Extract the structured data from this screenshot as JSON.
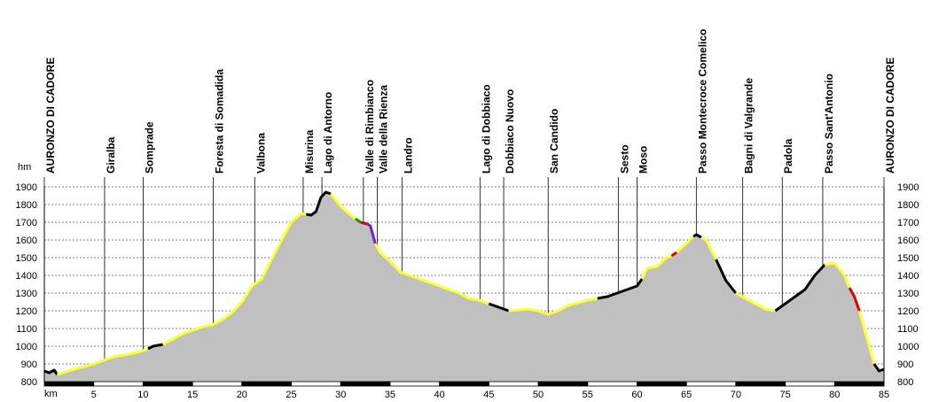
{
  "chart_data": {
    "type": "area",
    "y_label": "hm",
    "x_label": "km",
    "xlim": [
      0,
      85
    ],
    "ylim": [
      800,
      1900
    ],
    "xticks": [
      5,
      10,
      15,
      20,
      25,
      30,
      35,
      40,
      45,
      50,
      55,
      60,
      65,
      70,
      75,
      80,
      85
    ],
    "yticks": [
      800,
      900,
      1000,
      1100,
      1200,
      1300,
      1400,
      1500,
      1600,
      1700,
      1800,
      1900
    ],
    "grid": true,
    "fill_color": "#c0c0c0",
    "locations": [
      {
        "name": "AURONZO DI CADORE",
        "km": 0
      },
      {
        "name": "Giralba",
        "km": 6.1
      },
      {
        "name": "Somprade",
        "km": 10
      },
      {
        "name": "Foresta di Somadida",
        "km": 17.1
      },
      {
        "name": "Valbona",
        "km": 21.3
      },
      {
        "name": "Misurina",
        "km": 26.2
      },
      {
        "name": "Lago di Antorno",
        "km": 28.1
      },
      {
        "name": "Valle di Rimbianco",
        "km": 32.3
      },
      {
        "name": "Valle della Rienza",
        "km": 33.7
      },
      {
        "name": "Landro",
        "km": 36.2
      },
      {
        "name": "Lago di Dobbiaco",
        "km": 44.1
      },
      {
        "name": "Dobbiaco Nuovo",
        "km": 46.5
      },
      {
        "name": "San Candido",
        "km": 51
      },
      {
        "name": "Sesto",
        "km": 58.1
      },
      {
        "name": "Moso",
        "km": 60
      },
      {
        "name": "Passo Montecroce Comelico",
        "km": 66
      },
      {
        "name": "Bagni di Valgrande",
        "km": 70.7
      },
      {
        "name": "Padola",
        "km": 74.7
      },
      {
        "name": "Passo Sant'Antonio",
        "km": 78.8
      },
      {
        "name": "AURONZO DI CADORE",
        "km": 85
      }
    ],
    "series": [
      {
        "color": "#000000",
        "x": [
          0,
          0.5,
          1,
          1.3
        ],
        "values": [
          860,
          850,
          865,
          840
        ]
      },
      {
        "color": "#ffff33",
        "x": [
          1.3,
          3,
          5,
          6,
          7,
          9,
          10,
          10.5
        ],
        "values": [
          840,
          870,
          900,
          920,
          940,
          960,
          975,
          985
        ]
      },
      {
        "color": "#000000",
        "x": [
          10.5,
          11,
          12
        ],
        "values": [
          985,
          1000,
          1010
        ]
      },
      {
        "color": "#ffff33",
        "x": [
          12,
          13,
          14,
          15,
          16,
          17,
          18,
          19,
          20,
          21,
          22,
          23,
          24,
          25,
          26,
          26.5
        ],
        "values": [
          1010,
          1040,
          1070,
          1090,
          1110,
          1120,
          1150,
          1190,
          1250,
          1340,
          1380,
          1490,
          1600,
          1700,
          1750,
          1745
        ]
      },
      {
        "color": "#000000",
        "x": [
          26.5,
          27,
          27.5,
          28,
          28.5,
          29
        ],
        "values": [
          1745,
          1740,
          1760,
          1840,
          1870,
          1860
        ]
      },
      {
        "color": "#ffff33",
        "x": [
          29,
          30,
          31,
          31.5
        ],
        "values": [
          1860,
          1790,
          1740,
          1720
        ]
      },
      {
        "color": "#00a000",
        "x": [
          31.5,
          32
        ],
        "values": [
          1720,
          1700
        ]
      },
      {
        "color": "#e00000",
        "x": [
          32,
          32.7
        ],
        "values": [
          1700,
          1690
        ]
      },
      {
        "color": "#7020d0",
        "x": [
          32.7,
          33,
          33.5
        ],
        "values": [
          1690,
          1680,
          1580
        ]
      },
      {
        "color": "#ffff33",
        "x": [
          33.5,
          34,
          35,
          36,
          38,
          40,
          42,
          43,
          44,
          45
        ],
        "values": [
          1580,
          1530,
          1480,
          1420,
          1380,
          1340,
          1300,
          1270,
          1260,
          1240
        ]
      },
      {
        "color": "#000000",
        "x": [
          45,
          46,
          47
        ],
        "values": [
          1240,
          1220,
          1200
        ]
      },
      {
        "color": "#ffff33",
        "x": [
          47,
          49,
          50,
          51,
          52,
          53,
          55,
          56
        ],
        "values": [
          1200,
          1210,
          1200,
          1180,
          1200,
          1230,
          1260,
          1270
        ]
      },
      {
        "color": "#000000",
        "x": [
          56,
          57,
          58,
          59,
          60,
          60.5
        ],
        "values": [
          1270,
          1280,
          1300,
          1320,
          1340,
          1380
        ]
      },
      {
        "color": "#ffff33",
        "x": [
          60.5,
          61,
          62,
          63,
          63.5
        ],
        "values": [
          1380,
          1440,
          1450,
          1500,
          1510
        ]
      },
      {
        "color": "#e00000",
        "x": [
          63.5,
          64
        ],
        "values": [
          1510,
          1530
        ]
      },
      {
        "color": "#ffff33",
        "x": [
          64,
          65,
          65.7
        ],
        "values": [
          1530,
          1580,
          1620
        ]
      },
      {
        "color": "#000000",
        "x": [
          65.7,
          66,
          66.5
        ],
        "values": [
          1620,
          1630,
          1615
        ]
      },
      {
        "color": "#ffff33",
        "x": [
          66.5,
          67,
          68
        ],
        "values": [
          1615,
          1600,
          1490
        ]
      },
      {
        "color": "#000000",
        "x": [
          68,
          69,
          70
        ],
        "values": [
          1490,
          1370,
          1300
        ]
      },
      {
        "color": "#ffff33",
        "x": [
          70,
          71,
          72,
          73,
          74
        ],
        "values": [
          1300,
          1270,
          1240,
          1210,
          1200
        ]
      },
      {
        "color": "#000000",
        "x": [
          74,
          75,
          76,
          77,
          78,
          79
        ],
        "values": [
          1200,
          1240,
          1280,
          1320,
          1400,
          1460
        ]
      },
      {
        "color": "#ffff33",
        "x": [
          79,
          80,
          81,
          81.5
        ],
        "values": [
          1460,
          1470,
          1400,
          1330
        ]
      },
      {
        "color": "#e00000",
        "x": [
          81.5,
          82,
          82.5
        ],
        "values": [
          1330,
          1280,
          1200
        ]
      },
      {
        "color": "#ffff33",
        "x": [
          82.5,
          83,
          84
        ],
        "values": [
          1200,
          1100,
          900
        ]
      },
      {
        "color": "#000000",
        "x": [
          84,
          84.5,
          85
        ],
        "values": [
          900,
          860,
          870
        ]
      }
    ]
  }
}
